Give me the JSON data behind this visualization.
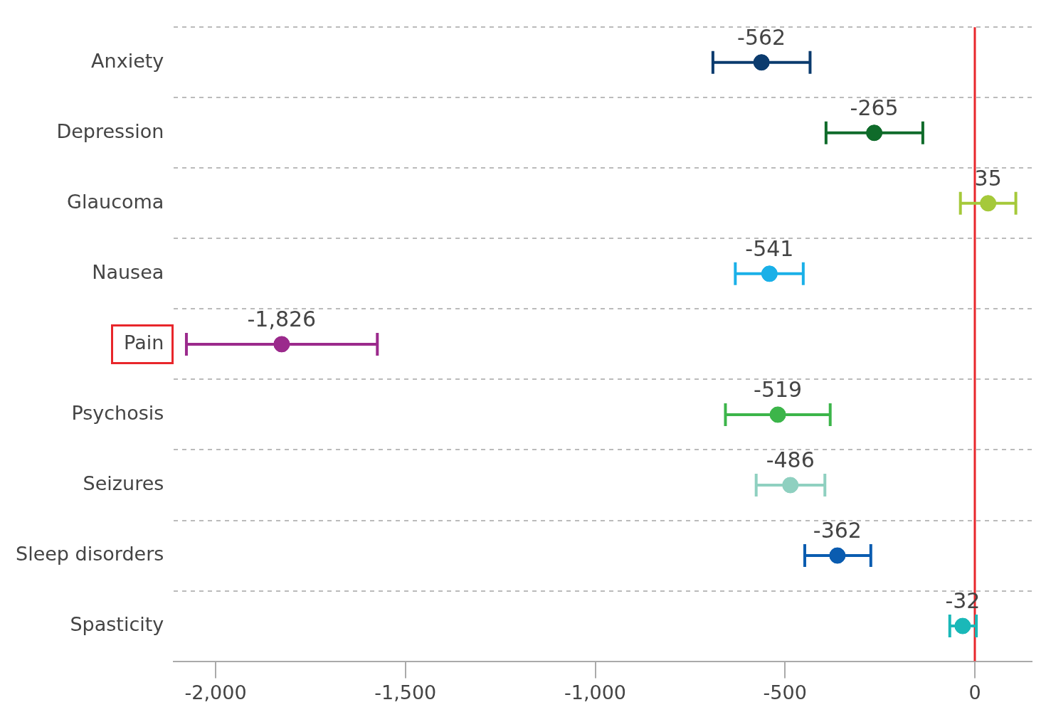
{
  "chart_data": {
    "type": "scatter",
    "orientation": "horizontal",
    "categories": [
      "Anxiety",
      "Depression",
      "Glaucoma",
      "Nausea",
      "Pain",
      "Psychosis",
      "Seizures",
      "Sleep disorders",
      "Spasticity"
    ],
    "values": [
      -562,
      -265,
      35,
      -541,
      -1826,
      -519,
      -486,
      -362,
      -32
    ],
    "colors": [
      "#0b3b6e",
      "#0f6b2a",
      "#a5c93a",
      "#1ab0e8",
      "#9b2a8c",
      "#3cb54a",
      "#8fd0c0",
      "#0a5cb0",
      "#1ab8b8"
    ],
    "errors": [
      [
        -690,
        -434
      ],
      [
        -392,
        -137
      ],
      [
        -38,
        108
      ],
      [
        -631,
        -452
      ],
      [
        -2077,
        -1574
      ],
      [
        -657,
        -381
      ],
      [
        -576,
        -395
      ],
      [
        -448,
        -274
      ],
      [
        -66,
        4
      ]
    ],
    "value_labels": [
      "-562",
      "-265",
      "35",
      "-541",
      "-1,826",
      "-519",
      "-486",
      "-362",
      "-32"
    ],
    "xlim": [
      -2110,
      150
    ],
    "xticks": [
      {
        "value": -2000,
        "label": "-2,000"
      },
      {
        "value": -1500,
        "label": "-1,500"
      },
      {
        "value": -1000,
        "label": "-1,000"
      },
      -500,
      0
    ],
    "ref_lines": [
      {
        "axis": "x",
        "value": 0,
        "color": "#e8262b"
      }
    ],
    "grid": "y",
    "legend": false,
    "marker": "circle"
  }
}
